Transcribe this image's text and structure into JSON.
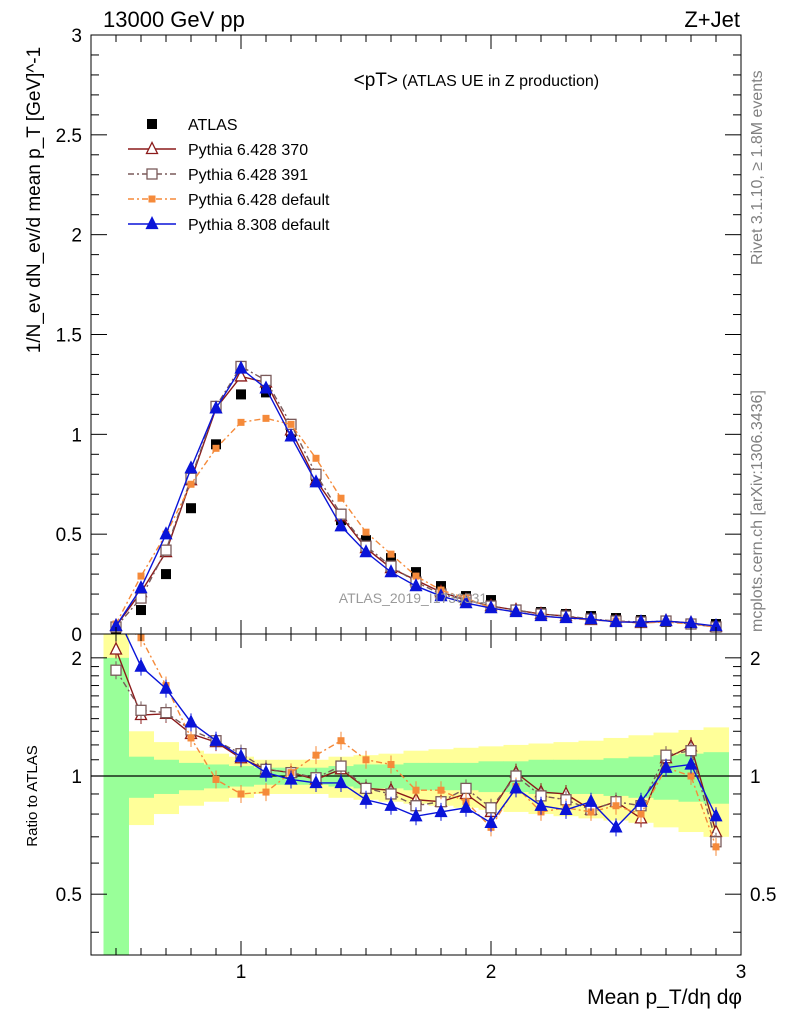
{
  "header": {
    "left": "13000 GeV pp",
    "right": "Z+Jet",
    "side_top": "Rivet 3.1.10, ≥ 1.8M events",
    "side_bottom": "mcplots.cern.ch [arXiv:1306.3436]"
  },
  "chart_data": {
    "type": "line",
    "title": "<pT>",
    "subtitle": "(ATLAS UE in Z production)",
    "watermark": "ATLAS_2019_I1736531",
    "ylabel": "1/N_ev dN_ev/d mean p_T [GeV]^-1",
    "ratio_ylabel": "Ratio to ATLAS",
    "xlabel": "Mean p_T/dη dφ",
    "xlim": [
      0.4,
      3.0
    ],
    "ylim": [
      0,
      3
    ],
    "ratio_ylim": [
      0.35,
      2.3
    ],
    "legend_position": "top-left",
    "x_ticks": [
      "1",
      "2",
      "3"
    ],
    "y_ticks": [
      "0",
      "0.5",
      "1",
      "1.5",
      "2",
      "2.5",
      "3"
    ],
    "ratio_ticks": [
      "0.5",
      "1",
      "2"
    ],
    "x": [
      0.5,
      0.6,
      0.7,
      0.8,
      0.9,
      1.0,
      1.1,
      1.2,
      1.3,
      1.4,
      1.5,
      1.6,
      1.7,
      1.8,
      1.9,
      2.0,
      2.1,
      2.2,
      2.3,
      2.4,
      2.5,
      2.6,
      2.7,
      2.8,
      2.9
    ],
    "data": {
      "name": "ATLAS",
      "values": [
        0.02,
        0.12,
        0.3,
        0.63,
        0.95,
        1.2,
        1.21,
        1.01,
        0.79,
        0.57,
        0.47,
        0.38,
        0.31,
        0.24,
        0.19,
        0.17,
        0.12,
        0.11,
        0.1,
        0.09,
        0.08,
        0.07,
        0.06,
        0.05,
        0.05
      ]
    },
    "series": [
      {
        "name": "Pythia 6.428 370",
        "color": "#8b1a1a",
        "marker": "triangle-open",
        "dash": "",
        "values": [
          0.04,
          0.21,
          0.41,
          0.77,
          1.13,
          1.29,
          1.26,
          1.02,
          0.77,
          0.59,
          0.43,
          0.33,
          0.27,
          0.21,
          0.17,
          0.14,
          0.12,
          0.1,
          0.09,
          0.07,
          0.065,
          0.055,
          0.065,
          0.055,
          0.035
        ]
      },
      {
        "name": "Pythia 6.428 391",
        "color": "#7a5a5a",
        "marker": "square-open",
        "dash": "6 3 2 3",
        "values": [
          0.035,
          0.18,
          0.42,
          0.78,
          1.14,
          1.34,
          1.27,
          1.05,
          0.8,
          0.6,
          0.44,
          0.34,
          0.26,
          0.2,
          0.17,
          0.14,
          0.12,
          0.1,
          0.09,
          0.075,
          0.065,
          0.06,
          0.065,
          0.05,
          0.035
        ]
      },
      {
        "name": "Pythia 6.428 default",
        "color": "#f58a3a",
        "marker": "square-filled",
        "dash": "6 3 2 3",
        "values": [
          0.05,
          0.29,
          0.5,
          0.75,
          0.93,
          1.06,
          1.08,
          1.05,
          0.88,
          0.68,
          0.51,
          0.4,
          0.29,
          0.22,
          0.18,
          0.13,
          0.11,
          0.09,
          0.08,
          0.07,
          0.065,
          0.055,
          0.06,
          0.05,
          0.035
        ]
      },
      {
        "name": "Pythia 8.308 default",
        "color": "#0a14d8",
        "marker": "triangle-filled",
        "dash": "",
        "values": [
          0.04,
          0.23,
          0.5,
          0.83,
          1.13,
          1.33,
          1.23,
          0.99,
          0.76,
          0.54,
          0.41,
          0.31,
          0.24,
          0.19,
          0.155,
          0.13,
          0.11,
          0.09,
          0.08,
          0.075,
          0.06,
          0.06,
          0.065,
          0.055,
          0.04
        ]
      }
    ],
    "ratio": {
      "band_inner": [
        [
          0.0,
          2.0
        ],
        [
          0.88,
          1.12
        ],
        [
          0.9,
          1.1
        ],
        [
          0.92,
          1.08
        ],
        [
          0.93,
          1.07
        ],
        [
          0.94,
          1.06
        ],
        [
          0.95,
          1.05
        ],
        [
          0.95,
          1.05
        ],
        [
          0.95,
          1.05
        ],
        [
          0.94,
          1.06
        ],
        [
          0.93,
          1.07
        ],
        [
          0.93,
          1.07
        ],
        [
          0.92,
          1.08
        ],
        [
          0.92,
          1.08
        ],
        [
          0.92,
          1.08
        ],
        [
          0.91,
          1.09
        ],
        [
          0.91,
          1.09
        ],
        [
          0.9,
          1.1
        ],
        [
          0.9,
          1.1
        ],
        [
          0.9,
          1.1
        ],
        [
          0.89,
          1.11
        ],
        [
          0.88,
          1.12
        ],
        [
          0.87,
          1.13
        ],
        [
          0.86,
          1.14
        ],
        [
          0.85,
          1.15
        ]
      ],
      "band_outer": [
        [
          0.0,
          2.3
        ],
        [
          0.75,
          1.3
        ],
        [
          0.8,
          1.22
        ],
        [
          0.84,
          1.16
        ],
        [
          0.86,
          1.14
        ],
        [
          0.88,
          1.12
        ],
        [
          0.9,
          1.1
        ],
        [
          0.9,
          1.1
        ],
        [
          0.9,
          1.1
        ],
        [
          0.88,
          1.12
        ],
        [
          0.87,
          1.13
        ],
        [
          0.86,
          1.14
        ],
        [
          0.85,
          1.16
        ],
        [
          0.84,
          1.17
        ],
        [
          0.83,
          1.18
        ],
        [
          0.82,
          1.19
        ],
        [
          0.81,
          1.2
        ],
        [
          0.8,
          1.21
        ],
        [
          0.79,
          1.22
        ],
        [
          0.78,
          1.23
        ],
        [
          0.77,
          1.25
        ],
        [
          0.76,
          1.27
        ],
        [
          0.74,
          1.29
        ],
        [
          0.72,
          1.31
        ],
        [
          0.7,
          1.33
        ]
      ],
      "series": [
        {
          "name": "Pythia 6.428 370",
          "values": [
            2.1,
            1.43,
            1.44,
            1.28,
            1.22,
            1.11,
            1.04,
            1.02,
            0.98,
            1.04,
            0.93,
            0.92,
            0.87,
            0.86,
            0.9,
            0.81,
            1.02,
            0.91,
            0.9,
            0.82,
            0.86,
            0.78,
            1.11,
            1.19,
            0.72
          ]
        },
        {
          "name": "Pythia 6.428 391",
          "values": [
            1.86,
            1.47,
            1.45,
            1.31,
            1.23,
            1.14,
            1.04,
            1.02,
            0.99,
            1.06,
            0.93,
            0.9,
            0.84,
            0.86,
            0.93,
            0.83,
            1.0,
            0.89,
            0.87,
            0.82,
            0.86,
            0.84,
            1.13,
            1.16,
            0.68
          ]
        },
        {
          "name": "Pythia 6.428 default",
          "values": [
            2.5,
            2.25,
            1.7,
            1.25,
            0.98,
            0.9,
            0.91,
            1.02,
            1.13,
            1.23,
            1.1,
            1.07,
            0.92,
            0.92,
            0.86,
            0.74,
            0.94,
            0.81,
            0.83,
            0.81,
            0.84,
            0.8,
            1.05,
            1.0,
            0.66
          ]
        },
        {
          "name": "Pythia 8.308 default",
          "values": [
            2.6,
            1.9,
            1.67,
            1.37,
            1.23,
            1.12,
            1.02,
            0.98,
            0.96,
            0.96,
            0.87,
            0.84,
            0.79,
            0.81,
            0.83,
            0.76,
            0.93,
            0.84,
            0.82,
            0.86,
            0.74,
            0.86,
            1.05,
            1.07,
            0.79
          ]
        }
      ]
    }
  }
}
